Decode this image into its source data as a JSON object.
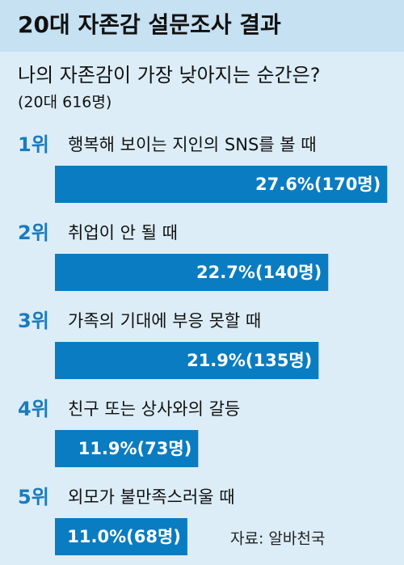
{
  "chart_data": {
    "type": "bar",
    "title": "20대 자존감 설문조사 결과",
    "subtitle": "나의 자존감이 가장 낮아지는 순간은?",
    "note": "(20대 616명)",
    "ranks": [
      "1위",
      "2위",
      "3위",
      "4위",
      "5위"
    ],
    "categories": [
      "행복해 보이는 지인의 SNS를 볼 때",
      "취업이 안 될 때",
      "가족의 기대에 부응 못할 때",
      "친구 또는 상사와의 갈등",
      "외모가 불만족스러울 때"
    ],
    "values": [
      27.6,
      22.7,
      21.9,
      11.9,
      11.0
    ],
    "value_labels": [
      "27.6%(170명)",
      "22.7%(140명)",
      "21.9%(135명)",
      "11.9%(73명)",
      "11.0%(68명)"
    ],
    "color": "#0a7cc1",
    "source": "자료: 알바천국"
  }
}
